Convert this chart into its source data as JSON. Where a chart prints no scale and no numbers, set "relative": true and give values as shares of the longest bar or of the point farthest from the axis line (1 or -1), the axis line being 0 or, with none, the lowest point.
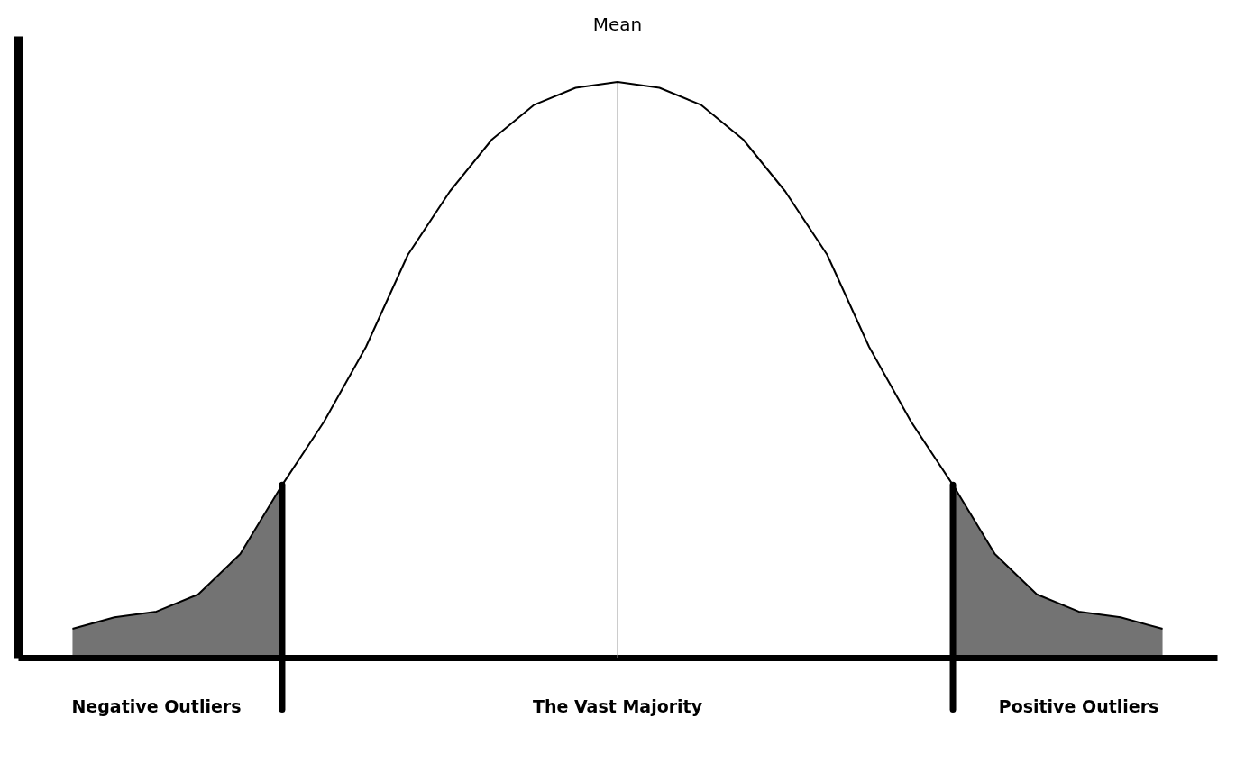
{
  "chart_data": {
    "type": "line",
    "relative": true,
    "categories": [
      null,
      null,
      null,
      null,
      null,
      null,
      null,
      null,
      null,
      null,
      null,
      null,
      null,
      null,
      null,
      null,
      null,
      null,
      null,
      null,
      null,
      null,
      null,
      null,
      null,
      null,
      null
    ],
    "series": [
      {
        "color": "#000000",
        "values": [
          0.05,
          0.07,
          0.08,
          0.11,
          0.18,
          0.3,
          0.41,
          0.54,
          0.7,
          0.81,
          0.9,
          0.96,
          0.99,
          1,
          0.99,
          0.96,
          0.9,
          0.81,
          0.7,
          0.54,
          0.41,
          0.3,
          0.18,
          0.11,
          0.08,
          0.07,
          0.05
        ]
      }
    ],
    "marker": "none",
    "line_style": "solid",
    "annotations": [
      "Mean",
      "Negative Outliers",
      "The Vast Majority",
      "Positive Outliers"
    ]
  }
}
